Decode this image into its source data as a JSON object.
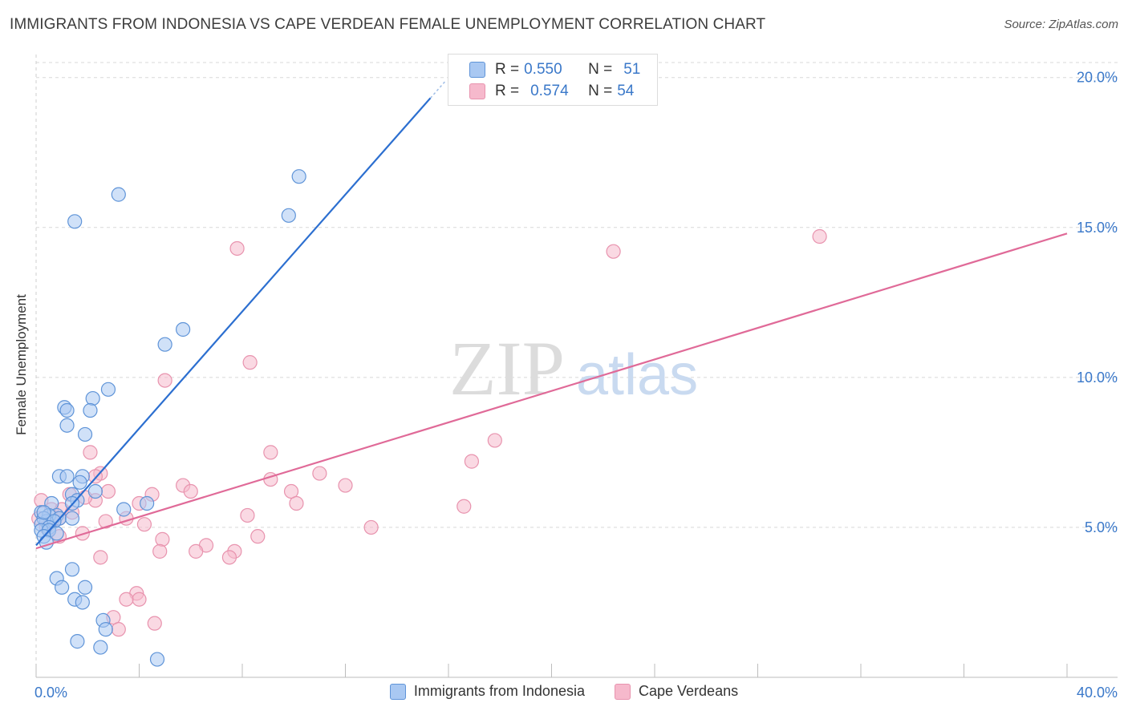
{
  "title": "IMMIGRANTS FROM INDONESIA VS CAPE VERDEAN FEMALE UNEMPLOYMENT CORRELATION CHART",
  "source": "Source: ZipAtlas.com",
  "watermark": {
    "zip": "ZIP",
    "atlas": "atlas"
  },
  "colors": {
    "blue_fill": "#a9c8f2",
    "blue_stroke": "#5f94d8",
    "blue_line": "#2c6fd0",
    "pink_fill": "#f6b9cc",
    "pink_stroke": "#e893ae",
    "pink_line": "#e06a98",
    "tick_text": "#3a78c9",
    "grid": "#d8d8d8"
  },
  "legend_top": {
    "rows": [
      {
        "r_label": "R =",
        "r_value": "0.550",
        "n_label": "N =",
        "n_value": "51",
        "series": "blue"
      },
      {
        "r_label": "R =",
        "r_value": "0.574",
        "n_label": "N =",
        "n_value": "54",
        "series": "pink"
      }
    ]
  },
  "legend_bottom": [
    {
      "label": "Immigrants from Indonesia",
      "series": "blue"
    },
    {
      "label": "Cape Verdeans",
      "series": "pink"
    }
  ],
  "chart_data": {
    "type": "scatter",
    "title": "IMMIGRANTS FROM INDONESIA VS CAPE VERDEAN FEMALE UNEMPLOYMENT CORRELATION CHART",
    "xlabel": "",
    "ylabel": "Female Unemployment",
    "xlim": [
      0,
      40
    ],
    "ylim": [
      0,
      20.5
    ],
    "x_tick_labels": [
      "0.0%",
      "40.0%"
    ],
    "y_ticks": [
      5,
      10,
      15,
      20
    ],
    "y_tick_labels": [
      "5.0%",
      "10.0%",
      "15.0%",
      "20.0%"
    ],
    "grid": true,
    "series": [
      {
        "name": "Immigrants from Indonesia",
        "color": "blue",
        "trendline": {
          "x": [
            0,
            15.9
          ],
          "y": [
            4.4,
            19.9
          ],
          "dashed_from_x": 15.3
        },
        "points": [
          [
            3.2,
            16.1
          ],
          [
            1.5,
            15.2
          ],
          [
            10.2,
            16.7
          ],
          [
            9.8,
            15.4
          ],
          [
            5.7,
            11.6
          ],
          [
            5.0,
            11.1
          ],
          [
            2.8,
            9.6
          ],
          [
            2.2,
            9.3
          ],
          [
            1.1,
            9.0
          ],
          [
            1.2,
            8.9
          ],
          [
            2.1,
            8.9
          ],
          [
            1.2,
            8.4
          ],
          [
            1.9,
            8.1
          ],
          [
            0.9,
            6.7
          ],
          [
            1.2,
            6.7
          ],
          [
            1.8,
            6.7
          ],
          [
            1.7,
            6.5
          ],
          [
            2.3,
            6.2
          ],
          [
            1.4,
            6.1
          ],
          [
            1.6,
            5.9
          ],
          [
            1.4,
            5.8
          ],
          [
            0.6,
            5.8
          ],
          [
            3.4,
            5.6
          ],
          [
            4.3,
            5.8
          ],
          [
            0.2,
            5.5
          ],
          [
            0.8,
            5.4
          ],
          [
            0.5,
            5.4
          ],
          [
            0.9,
            5.3
          ],
          [
            0.4,
            5.2
          ],
          [
            0.3,
            5.3
          ],
          [
            0.2,
            5.1
          ],
          [
            1.4,
            5.3
          ],
          [
            0.7,
            5.2
          ],
          [
            0.5,
            5.0
          ],
          [
            0.2,
            4.9
          ],
          [
            0.5,
            4.9
          ],
          [
            0.8,
            4.8
          ],
          [
            0.3,
            4.7
          ],
          [
            0.4,
            4.5
          ],
          [
            1.4,
            3.6
          ],
          [
            0.8,
            3.3
          ],
          [
            1.0,
            3.0
          ],
          [
            1.9,
            3.0
          ],
          [
            1.5,
            2.6
          ],
          [
            1.8,
            2.5
          ],
          [
            2.6,
            1.9
          ],
          [
            2.7,
            1.6
          ],
          [
            1.6,
            1.2
          ],
          [
            2.5,
            1.0
          ],
          [
            4.7,
            0.6
          ],
          [
            0.3,
            5.5
          ]
        ]
      },
      {
        "name": "Cape Verdeans",
        "color": "pink",
        "trendline": {
          "x": [
            0,
            40
          ],
          "y": [
            4.3,
            14.8
          ]
        },
        "points": [
          [
            30.4,
            14.7
          ],
          [
            22.4,
            14.2
          ],
          [
            7.8,
            14.3
          ],
          [
            8.3,
            10.5
          ],
          [
            5.0,
            9.9
          ],
          [
            17.8,
            7.9
          ],
          [
            16.9,
            7.2
          ],
          [
            2.1,
            7.5
          ],
          [
            9.1,
            7.5
          ],
          [
            2.5,
            6.8
          ],
          [
            2.3,
            6.7
          ],
          [
            11.0,
            6.8
          ],
          [
            9.1,
            6.6
          ],
          [
            12.0,
            6.4
          ],
          [
            5.7,
            6.4
          ],
          [
            6.0,
            6.2
          ],
          [
            2.8,
            6.2
          ],
          [
            4.5,
            6.1
          ],
          [
            9.9,
            6.2
          ],
          [
            1.3,
            6.1
          ],
          [
            2.3,
            5.9
          ],
          [
            10.1,
            5.8
          ],
          [
            4.0,
            5.8
          ],
          [
            16.6,
            5.7
          ],
          [
            0.2,
            5.9
          ],
          [
            0.6,
            5.6
          ],
          [
            1.0,
            5.6
          ],
          [
            8.2,
            5.4
          ],
          [
            0.9,
            5.3
          ],
          [
            1.4,
            5.5
          ],
          [
            2.7,
            5.2
          ],
          [
            3.5,
            5.3
          ],
          [
            4.2,
            5.1
          ],
          [
            13.0,
            5.0
          ],
          [
            1.8,
            4.8
          ],
          [
            0.9,
            4.7
          ],
          [
            8.6,
            4.7
          ],
          [
            4.9,
            4.6
          ],
          [
            6.6,
            4.4
          ],
          [
            6.2,
            4.2
          ],
          [
            4.8,
            4.2
          ],
          [
            7.7,
            4.2
          ],
          [
            7.5,
            4.0
          ],
          [
            2.5,
            4.0
          ],
          [
            3.9,
            2.8
          ],
          [
            4.0,
            2.6
          ],
          [
            3.5,
            2.6
          ],
          [
            3.0,
            2.0
          ],
          [
            4.6,
            1.8
          ],
          [
            3.2,
            1.6
          ],
          [
            0.4,
            5.0
          ],
          [
            0.1,
            5.3
          ],
          [
            1.9,
            6.0
          ],
          [
            0.6,
            5.2
          ]
        ]
      }
    ]
  }
}
